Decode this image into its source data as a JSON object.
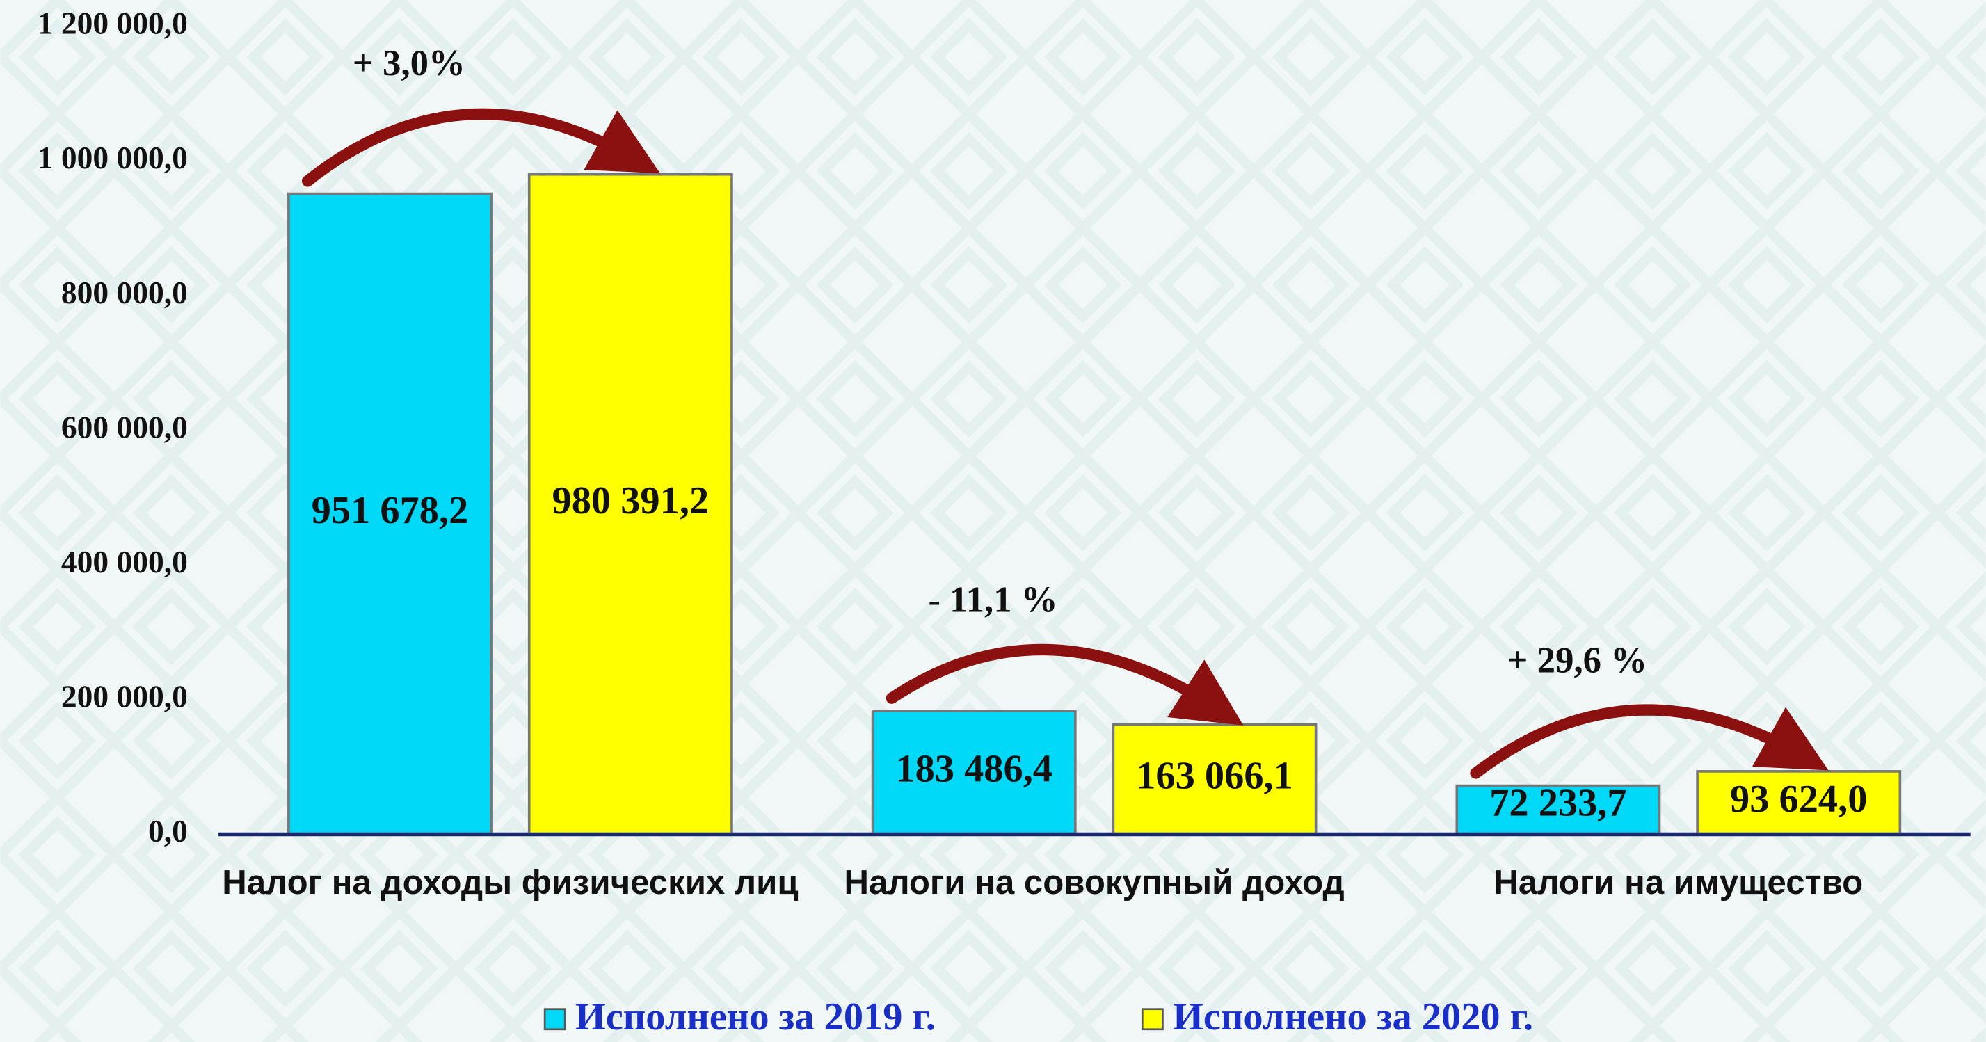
{
  "chart_data": {
    "type": "bar",
    "categories": [
      "Налог на доходы физических лиц",
      "Налоги на совокупный доход",
      "Налоги на имущество"
    ],
    "series": [
      {
        "name": "Исполнено за 2019 г.",
        "color": "#00d8f8",
        "values": [
          951678.2,
          183486.4,
          72233.7
        ],
        "value_labels": [
          "951 678,2",
          "183 486,4",
          "72 233,7"
        ]
      },
      {
        "name": "Исполнено за 2020 г.",
        "color": "#ffff00",
        "values": [
          980391.2,
          163066.1,
          93624.0
        ],
        "value_labels": [
          "980 391,2",
          "163 066,1",
          "93 624,0"
        ]
      }
    ],
    "annotations": [
      "+ 3,0%",
      "- 11,1 %",
      "+ 29,6 %"
    ],
    "ylim": [
      0,
      1200000
    ],
    "yticks": [
      {
        "value": 0,
        "label": "0,0"
      },
      {
        "value": 200000,
        "label": "200 000,0"
      },
      {
        "value": 400000,
        "label": "400 000,0"
      },
      {
        "value": 600000,
        "label": "600 000,0"
      },
      {
        "value": 800000,
        "label": "800 000,0"
      },
      {
        "value": 1000000,
        "label": "1 000 000,0"
      },
      {
        "value": 1200000,
        "label": "1 200 000,0"
      }
    ],
    "grid": false,
    "legend": "bottom"
  }
}
